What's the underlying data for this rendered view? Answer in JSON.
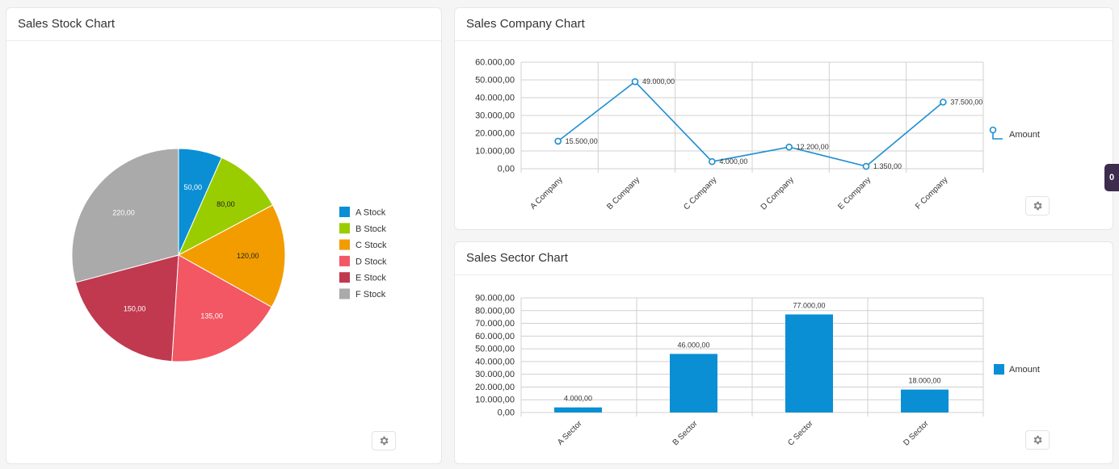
{
  "colors": {
    "line": "#1f8fd1",
    "bar": "#0a8fd4",
    "grid": "#d0d0d0",
    "pie": [
      "#0a8fd4",
      "#9acd00",
      "#f39c00",
      "#f25763",
      "#c0394f",
      "#aaaaaa"
    ]
  },
  "icons": {
    "settings": "gear-icon"
  },
  "side_badge": "0",
  "charts": [
    {
      "title": "Sales Stock Chart",
      "chart_data": {
        "type": "pie",
        "categories": [
          "A Stock",
          "B Stock",
          "C Stock",
          "D Stock",
          "E Stock",
          "F Stock"
        ],
        "values": [
          50,
          80,
          120,
          135,
          150,
          220
        ],
        "value_labels": [
          "50,00",
          "80,00",
          "120,00",
          "135,00",
          "150,00",
          "220,00"
        ],
        "legend": "right"
      }
    },
    {
      "title": "Sales Company Chart",
      "chart_data": {
        "type": "line",
        "categories": [
          "A Company",
          "B Company",
          "C Company",
          "D Company",
          "E Company",
          "F Company"
        ],
        "series": [
          {
            "name": "Amount",
            "values": [
              15500,
              49000,
              4000,
              12200,
              1350,
              37500
            ]
          }
        ],
        "value_labels": [
          "15.500,00",
          "49.000,00",
          "4.000,00",
          "12.200,00",
          "1.350,00",
          "37.500,00"
        ],
        "ylim": [
          0,
          60000
        ],
        "yticks": [
          "0,00",
          "10.000,00",
          "20.000,00",
          "30.000,00",
          "40.000,00",
          "50.000,00",
          "60.000,00"
        ],
        "grid": true,
        "legend": "right"
      }
    },
    {
      "title": "Sales Sector Chart",
      "chart_data": {
        "type": "bar",
        "categories": [
          "A Sector",
          "B Sector",
          "C Sector",
          "D Sector"
        ],
        "series": [
          {
            "name": "Amount",
            "values": [
              4000,
              46000,
              77000,
              18000
            ]
          }
        ],
        "value_labels": [
          "4.000,00",
          "46.000,00",
          "77.000,00",
          "18.000,00"
        ],
        "ylim": [
          0,
          90000
        ],
        "yticks": [
          "0,00",
          "10.000,00",
          "20.000,00",
          "30.000,00",
          "40.000,00",
          "50.000,00",
          "60.000,00",
          "70.000,00",
          "80.000,00",
          "90.000,00"
        ],
        "grid": true,
        "legend": "right"
      }
    }
  ]
}
